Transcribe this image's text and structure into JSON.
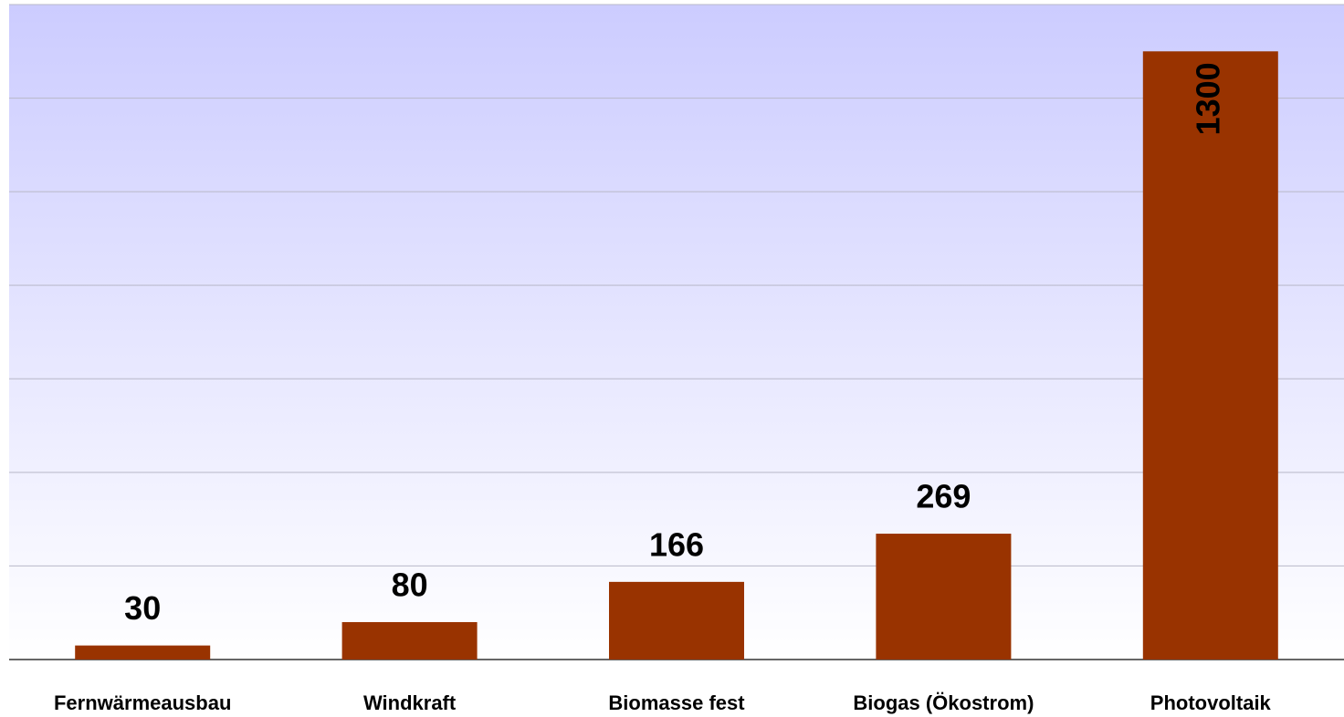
{
  "chart_data": {
    "type": "bar",
    "categories": [
      "Fernwärmeausbau",
      "Windkraft",
      "Biomasse fest",
      "Biogas (Ökostrom)",
      "Photovoltaik"
    ],
    "values": [
      30,
      80,
      166,
      269,
      1300
    ],
    "color": "#993300",
    "ylim": [
      0,
      1400
    ],
    "yticks": [
      0,
      200,
      400,
      600,
      800,
      1000,
      1200,
      1400
    ],
    "grid": true
  }
}
